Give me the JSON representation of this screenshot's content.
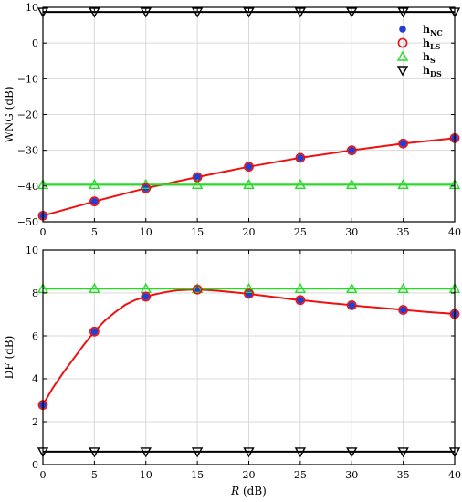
{
  "chart_data": [
    {
      "type": "line",
      "ylabel": "WNG (dB)",
      "xlabel": "",
      "xlim": [
        0,
        40
      ],
      "ylim": [
        -50,
        10
      ],
      "xticks": [
        "0",
        "5",
        "10",
        "15",
        "20",
        "25",
        "30",
        "35",
        "40"
      ],
      "yticks": [
        "10",
        "0",
        "−10",
        "−20",
        "−30",
        "−40",
        "−50"
      ],
      "grid": true,
      "legend_position": "top-right",
      "x": [
        0,
        5,
        10,
        15,
        20,
        25,
        30,
        35,
        40
      ],
      "series": [
        {
          "name": "h",
          "subscript": "NC",
          "marker": "filled-circle",
          "color": "#1f3fd6",
          "line": false,
          "values": [
            -48.3,
            -44.3,
            -40.6,
            -37.5,
            -34.6,
            -32.1,
            -30.0,
            -28.1,
            -26.6
          ]
        },
        {
          "name": "h",
          "subscript": "LS",
          "marker": "open-circle",
          "color": "#ee1111",
          "line": true,
          "values": [
            -48.3,
            -44.3,
            -40.6,
            -37.5,
            -34.6,
            -32.1,
            -30.0,
            -28.1,
            -26.6
          ]
        },
        {
          "name": "h",
          "subscript": "S",
          "marker": "triangle-up",
          "color": "#22dd22",
          "line": true,
          "values": [
            -39.6,
            -39.6,
            -39.6,
            -39.6,
            -39.6,
            -39.6,
            -39.6,
            -39.6,
            -39.6
          ]
        },
        {
          "name": "h",
          "subscript": "DS",
          "marker": "triangle-down",
          "color": "#000000",
          "line": true,
          "values": [
            8.7,
            8.7,
            8.7,
            8.7,
            8.7,
            8.7,
            8.7,
            8.7,
            8.7
          ]
        }
      ]
    },
    {
      "type": "line",
      "ylabel": "DF (dB)",
      "xlabel": "R (dB)",
      "xlim": [
        0,
        40
      ],
      "ylim": [
        0,
        10
      ],
      "xticks": [
        "0",
        "5",
        "10",
        "15",
        "20",
        "25",
        "30",
        "35",
        "40"
      ],
      "yticks": [
        "10",
        "8",
        "6",
        "4",
        "2",
        "0"
      ],
      "grid": true,
      "x": [
        0,
        5,
        10,
        15,
        20,
        25,
        30,
        35,
        40
      ],
      "curve_x": [
        0,
        1,
        2,
        3,
        4,
        5,
        6,
        7,
        8,
        9,
        10,
        11,
        12,
        13,
        14,
        15,
        16,
        17,
        18,
        19,
        20,
        21,
        22,
        23,
        24,
        25,
        26,
        27,
        28,
        29,
        30,
        31,
        32,
        33,
        34,
        35,
        36,
        37,
        38,
        39,
        40
      ],
      "curve_y": [
        2.78,
        3.6,
        4.3,
        4.95,
        5.6,
        6.2,
        6.7,
        7.1,
        7.45,
        7.68,
        7.83,
        7.95,
        8.05,
        8.12,
        8.15,
        8.16,
        8.14,
        8.1,
        8.06,
        8.01,
        7.96,
        7.9,
        7.84,
        7.78,
        7.72,
        7.67,
        7.62,
        7.57,
        7.52,
        7.48,
        7.43,
        7.38,
        7.34,
        7.3,
        7.26,
        7.21,
        7.17,
        7.13,
        7.09,
        7.06,
        7.02
      ],
      "series": [
        {
          "name": "h",
          "subscript": "NC",
          "marker": "filled-circle",
          "color": "#1f3fd6",
          "line": false,
          "values": [
            2.78,
            6.2,
            7.83,
            8.16,
            7.96,
            7.67,
            7.43,
            7.21,
            7.02
          ]
        },
        {
          "name": "h",
          "subscript": "LS",
          "marker": "open-circle",
          "color": "#ee1111",
          "line": true,
          "values": [
            2.78,
            6.2,
            7.83,
            8.16,
            7.96,
            7.67,
            7.43,
            7.21,
            7.02
          ]
        },
        {
          "name": "h",
          "subscript": "S",
          "marker": "triangle-up",
          "color": "#22dd22",
          "line": true,
          "values": [
            8.2,
            8.2,
            8.2,
            8.2,
            8.2,
            8.2,
            8.2,
            8.2,
            8.2
          ]
        },
        {
          "name": "h",
          "subscript": "DS",
          "marker": "triangle-down",
          "color": "#000000",
          "line": true,
          "values": [
            0.6,
            0.6,
            0.6,
            0.6,
            0.6,
            0.6,
            0.6,
            0.6,
            0.6
          ]
        }
      ]
    }
  ]
}
